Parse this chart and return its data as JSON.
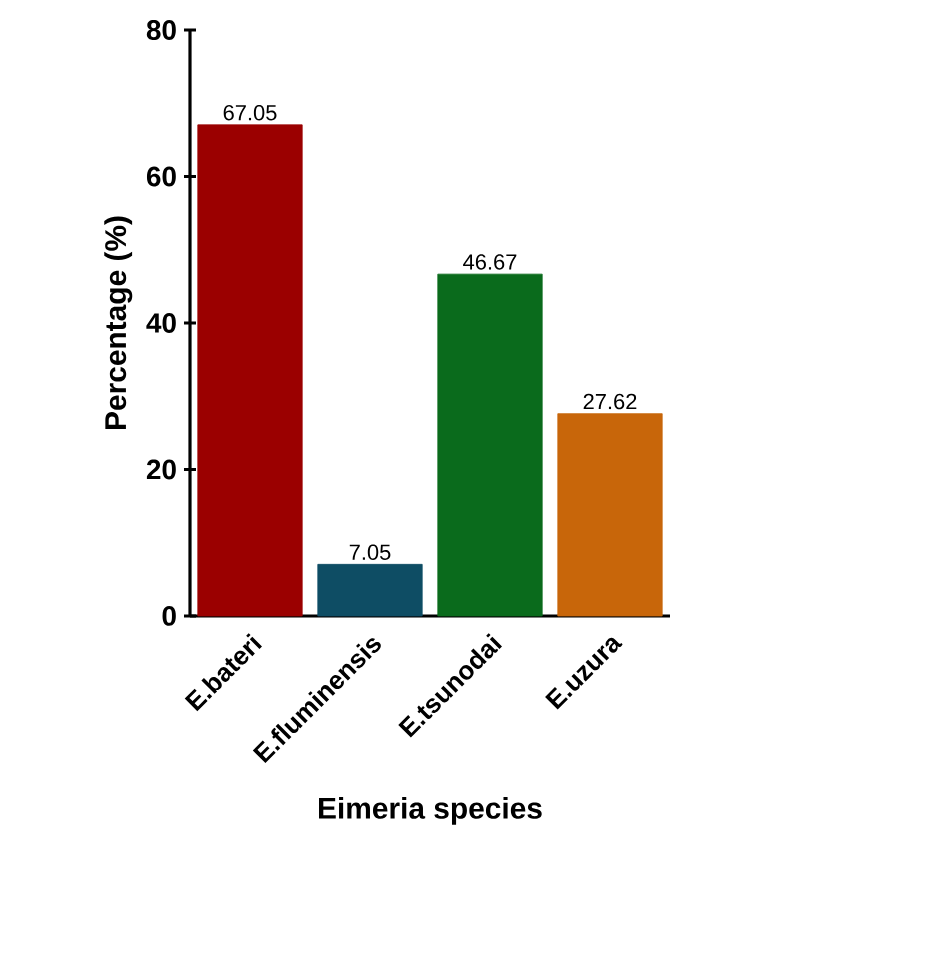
{
  "chart_data": {
    "type": "bar",
    "xlabel": "Eimeria species",
    "ylabel": "Percentage (%)",
    "categories": [
      "E.bateri",
      "E.fluminensis",
      "E.tsunodai",
      "E.uzura"
    ],
    "values": [
      67.05,
      7.05,
      46.67,
      27.62
    ],
    "colors": [
      "#9b0000",
      "#0e4d64",
      "#0a6b1c",
      "#c8660a"
    ],
    "ylim": [
      0,
      80
    ],
    "yticks": [
      0,
      20,
      40,
      60,
      80
    ],
    "grid": false,
    "data_labels": true
  }
}
